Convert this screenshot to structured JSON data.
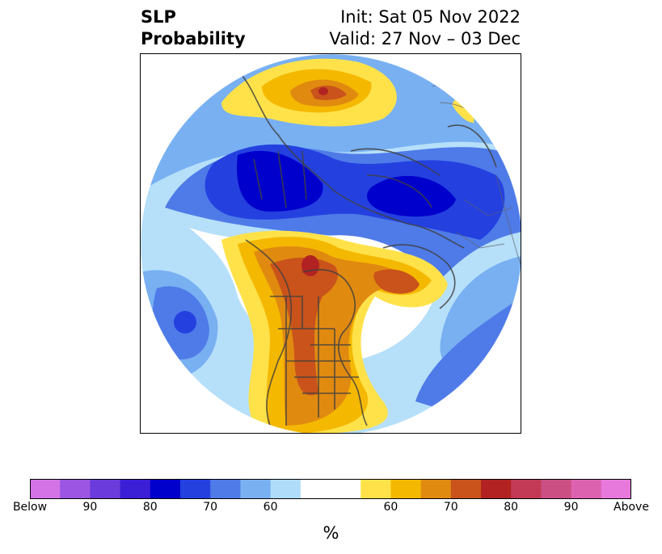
{
  "title": {
    "left_line1": "SLP",
    "left_line2": "Probability",
    "right_line1": "Init: Sat 05 Nov 2022",
    "right_line2": "Valid: 27 Nov – 03 Dec"
  },
  "colorbar": {
    "unit": "%",
    "colors": [
      "#d473e6",
      "#9b55e2",
      "#6c3bdb",
      "#3b1fd6",
      "#0000cc",
      "#2441e0",
      "#4f7be8",
      "#78b0f2",
      "#aedcf9",
      "#ffffff",
      "#ffffff",
      "#ffe24a",
      "#f5b800",
      "#e08a10",
      "#c9531b",
      "#b22222",
      "#c23a55",
      "#cc4f84",
      "#dc62b0",
      "#e879dc"
    ],
    "tick_labels": [
      "Below",
      "90",
      "80",
      "70",
      "60",
      "60",
      "70",
      "80",
      "90",
      "Above"
    ]
  }
}
